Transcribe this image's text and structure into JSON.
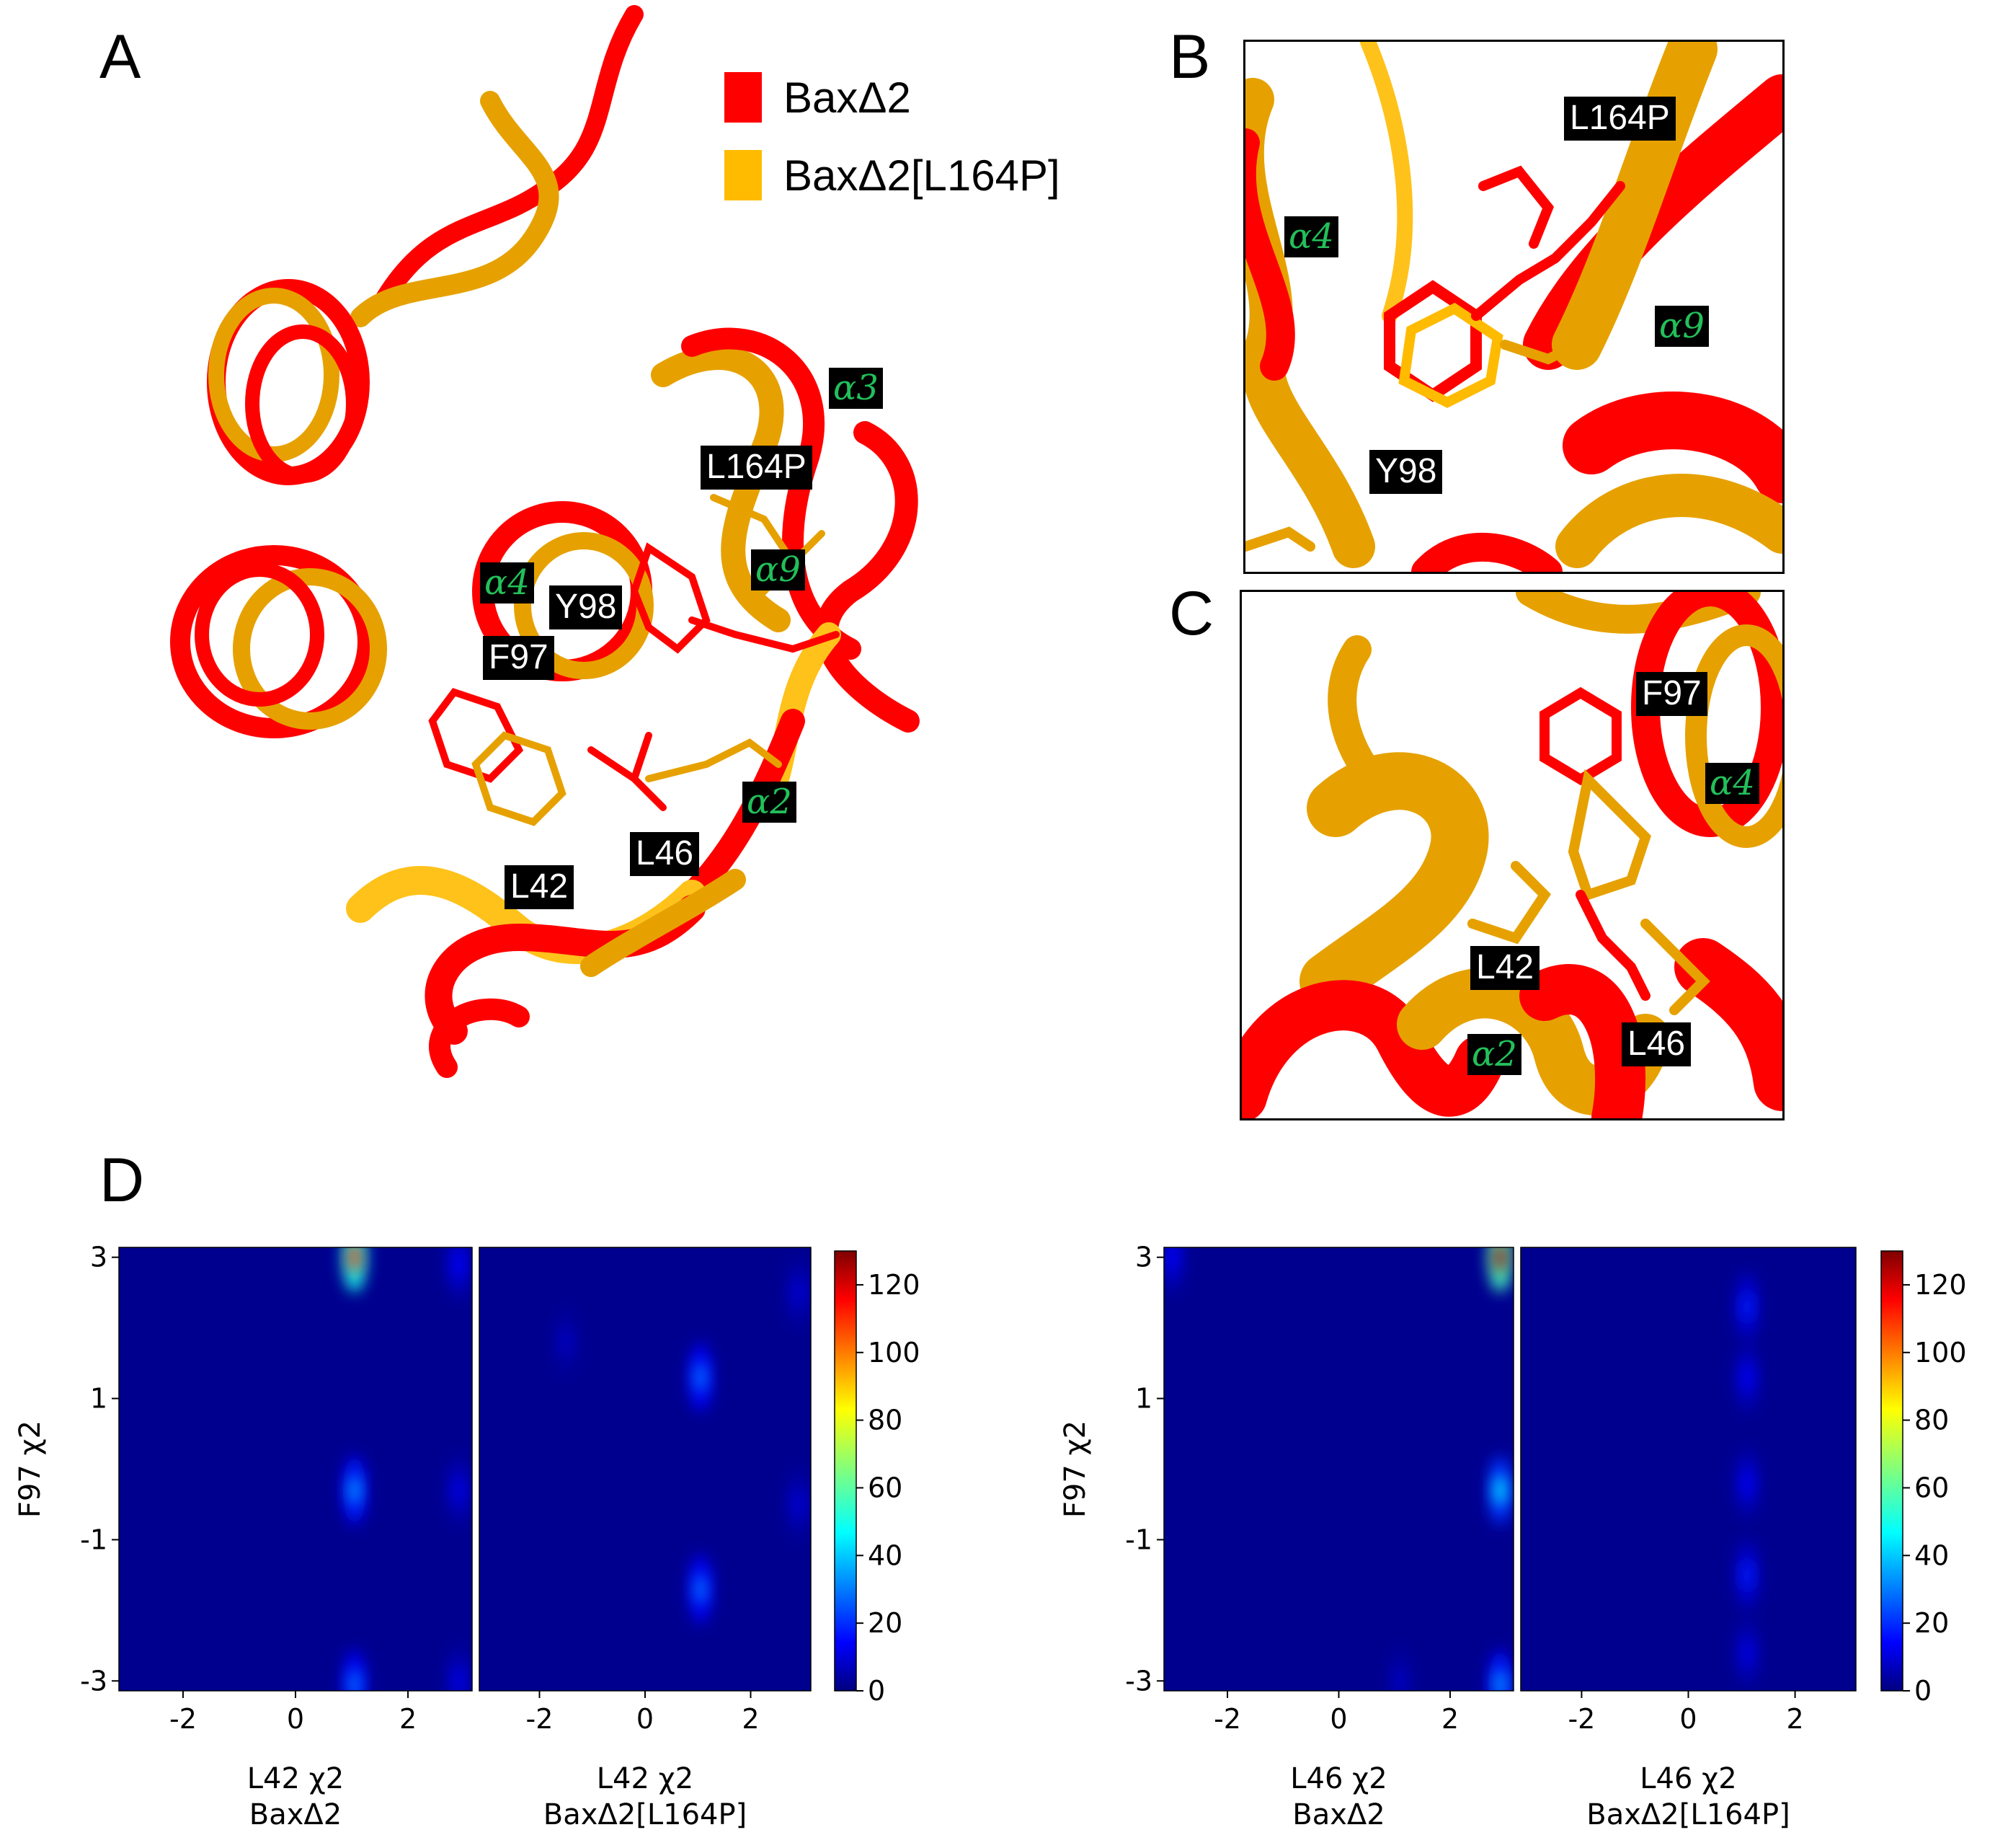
{
  "panels": {
    "a": "A",
    "b": "B",
    "c": "C",
    "d": "D"
  },
  "legend": [
    {
      "label": "BaxΔ2",
      "color": "#ff0000"
    },
    {
      "label": "BaxΔ2[L164P]",
      "color": "#ffbb00"
    }
  ],
  "panelA_labels": {
    "l164p": "L164P",
    "y98": "Y98",
    "f97": "F97",
    "l42": "L42",
    "l46": "L46",
    "a3": "α3",
    "a4": "α4",
    "a9": "α9",
    "a2": "α2"
  },
  "panelB_labels": {
    "l164p": "L164P",
    "y98": "Y98",
    "a4": "α4",
    "a9": "α9"
  },
  "panelC_labels": {
    "f97": "F97",
    "a4": "α4",
    "l42": "L42",
    "l46": "L46",
    "a2": "α2"
  },
  "colors": {
    "wt": "#ff0000",
    "mutant": "#e6a100",
    "mutant_light": "#ffc21a",
    "heat_bg": "#00008f"
  },
  "chart_data": [
    {
      "type": "heatmap",
      "ylabel": "F97 χ2",
      "xlabel_line1": "L42 χ2",
      "xlabel_line2": "BaxΔ2",
      "xlim": [
        -3.14,
        3.14
      ],
      "ylim": [
        -3.14,
        3.14
      ],
      "xticks": [
        "-2",
        "0",
        "2"
      ],
      "yticks": [
        "3",
        "1",
        "-1",
        "-3"
      ],
      "hotspots": [
        {
          "x": 1.05,
          "y": 3.0,
          "v": 110
        },
        {
          "x": 1.05,
          "y": -0.3,
          "v": 35
        },
        {
          "x": 1.05,
          "y": -3.05,
          "v": 30
        },
        {
          "x": 2.9,
          "y": 2.9,
          "v": 15
        },
        {
          "x": 2.9,
          "y": -0.3,
          "v": 12
        },
        {
          "x": 2.9,
          "y": -3.0,
          "v": 12
        }
      ]
    },
    {
      "type": "heatmap",
      "xlabel_line1": "L42 χ2",
      "xlabel_line2": "BaxΔ2[L164P]",
      "xlim": [
        -3.14,
        3.14
      ],
      "ylim": [
        -3.14,
        3.14
      ],
      "xticks": [
        "-2",
        "0",
        "2"
      ],
      "hotspots": [
        {
          "x": 1.05,
          "y": 1.3,
          "v": 30
        },
        {
          "x": 1.05,
          "y": -1.7,
          "v": 30
        },
        {
          "x": 2.9,
          "y": 2.5,
          "v": 10
        },
        {
          "x": 2.9,
          "y": -0.5,
          "v": 10
        },
        {
          "x": -1.5,
          "y": 1.8,
          "v": 8
        }
      ]
    },
    {
      "type": "heatmap",
      "ylabel": "F97 χ2",
      "xlabel_line1": "L46 χ2",
      "xlabel_line2": "BaxΔ2",
      "xlim": [
        -3.14,
        3.14
      ],
      "ylim": [
        -3.14,
        3.14
      ],
      "xticks": [
        "-2",
        "0",
        "2"
      ],
      "yticks": [
        "3",
        "1",
        "-1",
        "-3"
      ],
      "hotspots": [
        {
          "x": 2.9,
          "y": 3.0,
          "v": 125
        },
        {
          "x": 2.9,
          "y": -0.3,
          "v": 45
        },
        {
          "x": 2.9,
          "y": -3.05,
          "v": 35
        },
        {
          "x": -3.0,
          "y": 3.0,
          "v": 15
        },
        {
          "x": 1.1,
          "y": -3.0,
          "v": 8
        }
      ]
    },
    {
      "type": "heatmap",
      "xlabel_line1": "L46 χ2",
      "xlabel_line2": "BaxΔ2[L164P]",
      "xlim": [
        -3.14,
        3.14
      ],
      "ylim": [
        -3.14,
        3.14
      ],
      "xticks": [
        "-2",
        "0",
        "2"
      ],
      "hotspots": [
        {
          "x": 1.1,
          "y": 2.3,
          "v": 18
        },
        {
          "x": 1.1,
          "y": 1.3,
          "v": 14
        },
        {
          "x": 1.1,
          "y": -0.2,
          "v": 14
        },
        {
          "x": 1.1,
          "y": -1.5,
          "v": 18
        },
        {
          "x": 1.1,
          "y": -2.6,
          "v": 12
        }
      ]
    }
  ],
  "colorbar": {
    "ticks": [
      "120",
      "100",
      "80",
      "60",
      "40",
      "20",
      "0"
    ],
    "range": [
      0,
      130
    ]
  }
}
